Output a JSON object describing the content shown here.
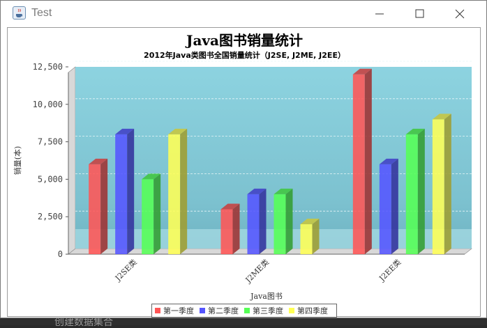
{
  "window": {
    "title": "Test",
    "icon": "java-cup-icon",
    "controls": [
      "minimize-icon",
      "maximize-icon",
      "close-icon"
    ]
  },
  "background_ide": {
    "partial_text": "创建数据集合"
  },
  "chart_data": {
    "type": "bar",
    "style": "3d",
    "title": "Java图书销量统计",
    "subtitle": "2012年Java类图书全国销量统计（J2SE, J2ME, J2EE）",
    "xlabel": "Java图书",
    "ylabel": "销量(本)",
    "categories": [
      "J2SE类",
      "J2ME类",
      "J2EE类"
    ],
    "series": [
      {
        "name": "第一季度",
        "color": "#ff5555",
        "values": [
          6000,
          3000,
          12000
        ]
      },
      {
        "name": "第二季度",
        "color": "#5555ff",
        "values": [
          8000,
          4000,
          6000
        ]
      },
      {
        "name": "第三季度",
        "color": "#55ff55",
        "values": [
          5000,
          4000,
          8000
        ]
      },
      {
        "name": "第四季度",
        "color": "#ffff55",
        "values": [
          8000,
          2000,
          9000
        ]
      }
    ],
    "ylim": [
      0,
      12500
    ],
    "yticks": [
      "0",
      "2,500",
      "5,000",
      "7,500",
      "10,000",
      "12,500"
    ],
    "grid": true,
    "legend_position": "bottom",
    "plot_background": "#86c9d6"
  }
}
